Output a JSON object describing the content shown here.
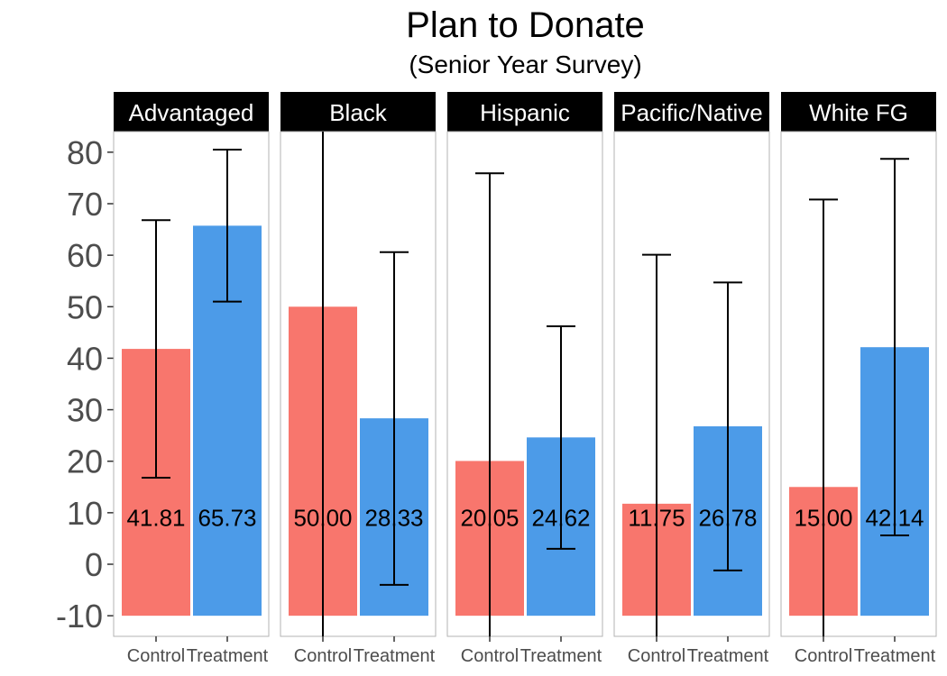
{
  "chart_data": {
    "type": "bar",
    "title": "Plan to Donate",
    "subtitle": "(Senior Year Survey)",
    "xlabel": "",
    "ylabel": "",
    "ylim": [
      -14,
      84
    ],
    "yticks": [
      -10,
      0,
      10,
      20,
      30,
      40,
      50,
      60,
      70,
      80
    ],
    "bar_base": -10,
    "label_y": 9,
    "grid": false,
    "legend": "none",
    "categories": [
      "Control",
      "Treatment"
    ],
    "colors": {
      "Control": "#F8766D",
      "Treatment": "#4C9BE8"
    },
    "facets": [
      {
        "name": "Advantaged",
        "bars": [
          {
            "group": "Control",
            "value": 41.81,
            "label": "41.81",
            "ci": [
              16.8,
              66.8
            ]
          },
          {
            "group": "Treatment",
            "value": 65.73,
            "label": "65.73",
            "ci": [
              51.0,
              80.5
            ]
          }
        ]
      },
      {
        "name": "Black",
        "bars": [
          {
            "group": "Control",
            "value": 50.0,
            "label": "50.00",
            "ci": [
              -14,
              84
            ]
          },
          {
            "group": "Treatment",
            "value": 28.33,
            "label": "28.33",
            "ci": [
              -4.0,
              60.6
            ]
          }
        ]
      },
      {
        "name": "Hispanic",
        "bars": [
          {
            "group": "Control",
            "value": 20.05,
            "label": "20.05",
            "ci": [
              -14,
              75.9
            ]
          },
          {
            "group": "Treatment",
            "value": 24.62,
            "label": "24.62",
            "ci": [
              3.0,
              46.2
            ]
          }
        ]
      },
      {
        "name": "Pacific/Native",
        "bars": [
          {
            "group": "Control",
            "value": 11.75,
            "label": "11.75",
            "ci": [
              -14,
              60.1
            ]
          },
          {
            "group": "Treatment",
            "value": 26.78,
            "label": "26.78",
            "ci": [
              -1.2,
              54.7
            ]
          }
        ]
      },
      {
        "name": "White FG",
        "bars": [
          {
            "group": "Control",
            "value": 15.0,
            "label": "15.00",
            "ci": [
              -14,
              70.8
            ]
          },
          {
            "group": "Treatment",
            "value": 42.14,
            "label": "42.14",
            "ci": [
              5.6,
              78.7
            ]
          }
        ]
      }
    ]
  }
}
